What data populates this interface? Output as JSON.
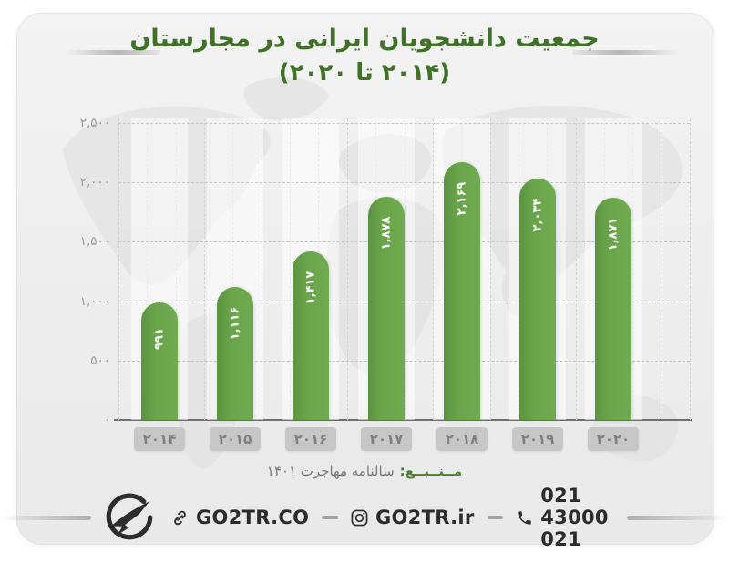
{
  "title": {
    "line1": "جمعیت دانشجویان ایرانی در مجارستان",
    "line2": "(۲۰۱۴ تا ۲۰۲۰)"
  },
  "chart_data": {
    "type": "bar",
    "title": "جمعیت دانشجویان ایرانی در مجارستان (۲۰۱۴ تا ۲۰۲۰)",
    "categories": [
      "۲۰۱۴",
      "۲۰۱۵",
      "۲۰۱۶",
      "۲۰۱۷",
      "۲۰۱۸",
      "۲۰۱۹",
      "۲۰۲۰"
    ],
    "values": [
      991,
      1116,
      1417,
      1878,
      2169,
      2034,
      1871
    ],
    "value_labels": [
      "۹۹۱",
      "۱,۱۱۶",
      "۱,۴۱۷",
      "۱,۸۷۸",
      "۲,۱۶۹",
      "۲,۰۳۴",
      "۱,۸۷۱"
    ],
    "y_ticks": [
      "۲,۵۰۰",
      "۲,۰۰۰",
      "۱,۵۰۰",
      "۱,۰۰۰",
      "۵۰۰",
      "۰"
    ],
    "y_tick_values": [
      2500,
      2000,
      1500,
      1000,
      500,
      0
    ],
    "ylim": [
      0,
      2500
    ],
    "xlabel": "",
    "ylabel": "",
    "grid": "dashed",
    "legend": "none",
    "bar_color": "#6aa54b"
  },
  "source": {
    "label": "مــنــبــع:",
    "text": "سالنامه مهاجرت ۱۴۰۱"
  },
  "footer": {
    "website": "GO2TR.CO",
    "instagram": "GO2TR.ir",
    "phone": "021 43000 021"
  },
  "colors": {
    "title_green": "#3f7227",
    "bar_green": "#6aa54b",
    "axis_gray": "#6f6f6f",
    "tick_gray": "#9a9a9a",
    "xlabel_box": "#c7c7c7",
    "footer_text": "#2c2c2c",
    "card_bg": "#ededed"
  }
}
